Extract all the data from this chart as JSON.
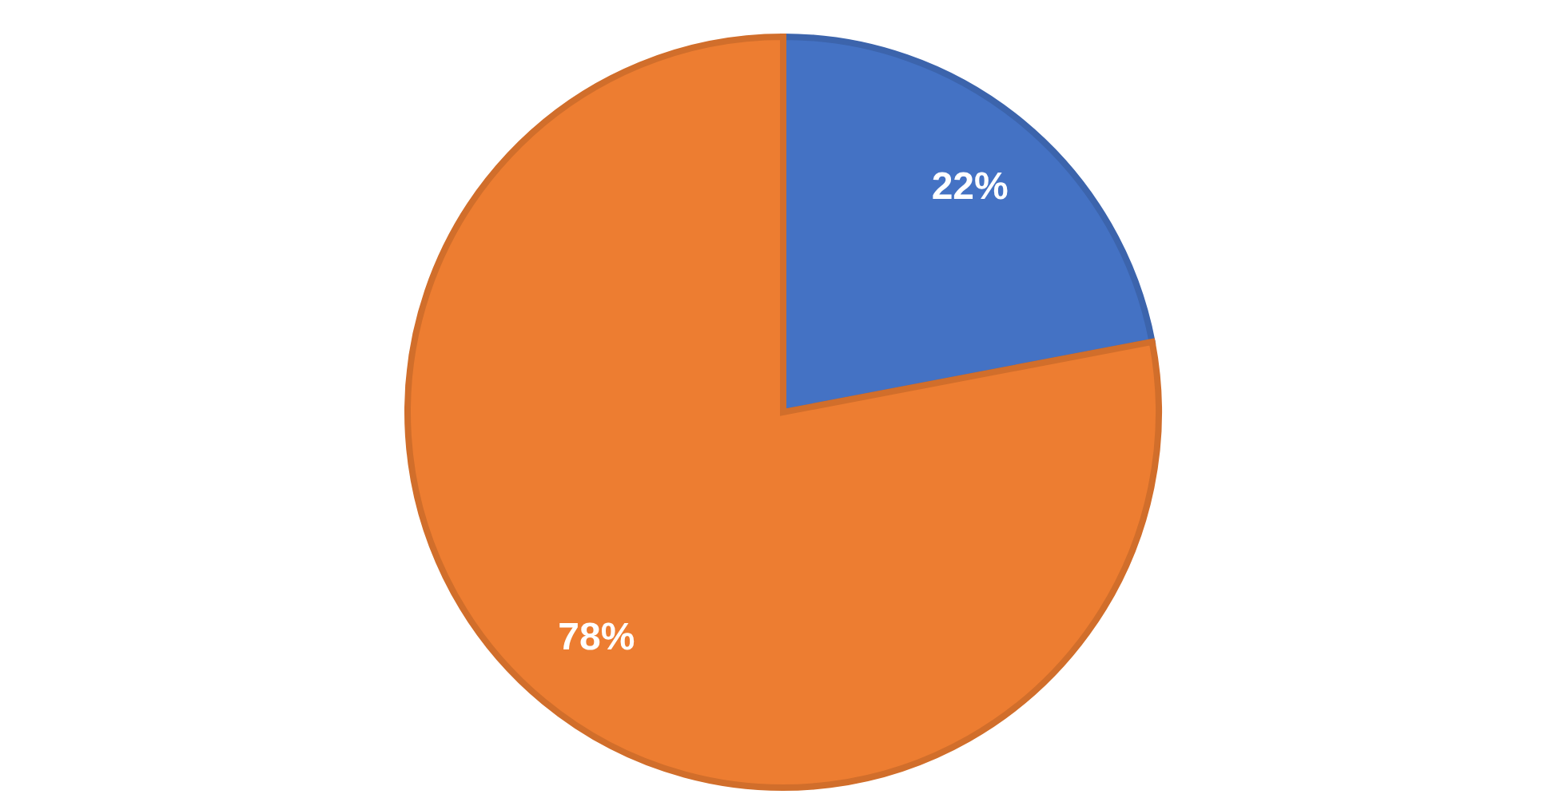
{
  "chart_data": {
    "type": "pie",
    "categories": [
      null,
      null
    ],
    "values": [
      22,
      78
    ],
    "colors": [
      "#4472c4",
      "#ed7d31"
    ],
    "value_labels": [
      "22%",
      "78%"
    ],
    "legend": false
  }
}
